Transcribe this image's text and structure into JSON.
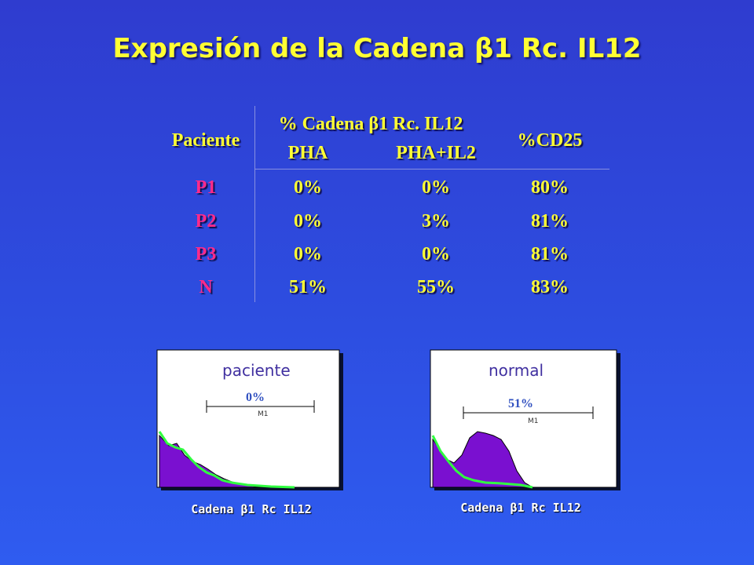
{
  "title": "Expresión de la Cadena β1 Rc. IL12",
  "table": {
    "headers": {
      "patient": "Paciente",
      "group": "% Cadena β1 Rc. IL12",
      "sub": [
        "PHA",
        "PHA+IL2"
      ],
      "cd25": "%CD25"
    },
    "rows": [
      [
        "P1",
        "0%",
        "0%",
        "80%"
      ],
      [
        "P2",
        "0%",
        "3%",
        "81%"
      ],
      [
        "P3",
        "0%",
        "0%",
        "81%"
      ],
      [
        "N",
        "51%",
        "55%",
        "83%"
      ]
    ]
  },
  "histograms": [
    {
      "label": "paciente",
      "percent": "0%",
      "marker": "M1",
      "axis_label": "Cadena β1 Rc IL12"
    },
    {
      "label": "normal",
      "percent": "51%",
      "marker": "M1",
      "axis_label": "Cadena β1 Rc IL12"
    }
  ]
}
